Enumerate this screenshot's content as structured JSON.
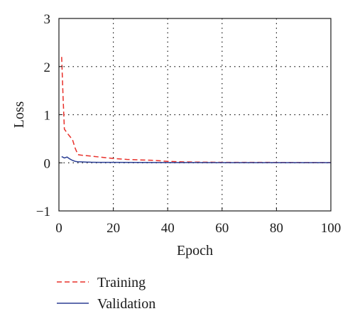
{
  "chart_data": {
    "type": "line",
    "title": "",
    "xlabel": "Epoch",
    "ylabel": "Loss",
    "xlim": [
      0,
      100
    ],
    "ylim": [
      -1,
      3
    ],
    "x_ticks": [
      "0",
      "20",
      "40",
      "60",
      "80",
      "100"
    ],
    "y_ticks": [
      "−1",
      "0",
      "1",
      "2",
      "3"
    ],
    "grid": true,
    "legend_position": "bottom-left",
    "series": [
      {
        "name": "Training",
        "color": "#e8302a",
        "style": "dashed",
        "x": [
          1,
          1.5,
          2,
          3,
          4,
          5,
          6,
          7,
          8,
          10,
          15,
          20,
          25,
          30,
          35,
          40,
          45,
          50,
          60,
          70,
          80,
          90,
          100
        ],
        "y": [
          2.2,
          1.4,
          0.7,
          0.62,
          0.55,
          0.48,
          0.3,
          0.17,
          0.16,
          0.15,
          0.12,
          0.09,
          0.07,
          0.06,
          0.05,
          0.03,
          0.02,
          0.015,
          0.01,
          0.01,
          0.008,
          0.006,
          0.005
        ]
      },
      {
        "name": "Validation",
        "color": "#2b3f94",
        "style": "solid",
        "x": [
          1,
          2,
          3,
          4,
          5,
          6,
          7,
          8,
          10,
          12,
          15,
          20,
          30,
          40,
          50,
          60,
          70,
          80,
          90,
          100
        ],
        "y": [
          0.13,
          0.1,
          0.12,
          0.08,
          0.05,
          0.03,
          0.02,
          0.02,
          0.015,
          0.012,
          0.01,
          0.01,
          0.008,
          0.006,
          0.005,
          0.004,
          0.004,
          0.003,
          0.003,
          0.003
        ]
      }
    ]
  }
}
